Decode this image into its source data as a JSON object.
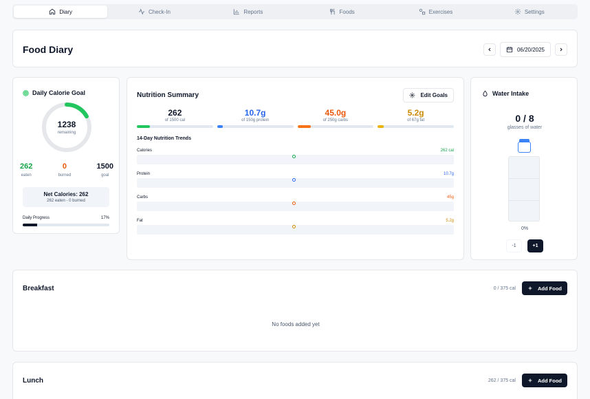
{
  "tabs": [
    {
      "label": "Diary",
      "icon": "home-icon",
      "active": true
    },
    {
      "label": "Check-In",
      "icon": "activity-icon"
    },
    {
      "label": "Reports",
      "icon": "bar-chart-icon"
    },
    {
      "label": "Foods",
      "icon": "utensils-icon"
    },
    {
      "label": "Exercises",
      "icon": "shapes-icon"
    },
    {
      "label": "Settings",
      "icon": "gear-icon"
    }
  ],
  "header": {
    "title": "Food Diary",
    "date": "06/20/2025"
  },
  "calorie_goal": {
    "title": "Daily Calorie Goal",
    "remaining": "1238",
    "remaining_label": "remaining",
    "ring_progress": 0.17,
    "eaten": "262",
    "eaten_label": "eaten",
    "burned": "0",
    "burned_label": "burned",
    "goal": "1500",
    "goal_label": "goal",
    "net_title": "Net Calories: 262",
    "net_sub": "262 eaten - 0 burned",
    "progress_label": "Daily Progress",
    "progress_pct": "17%",
    "progress": 0.17
  },
  "nutrition": {
    "title": "Nutrition Summary",
    "edit_label": "Edit Goals",
    "macros": [
      {
        "value": "262",
        "sub": "of 1500 cal",
        "color": "#0f172a",
        "bar": "#22c55e",
        "progress": 0.17
      },
      {
        "value": "10.7g",
        "sub": "of 150g protein",
        "color": "#2563eb",
        "bar": "#3b82f6",
        "progress": 0.07
      },
      {
        "value": "45.0g",
        "sub": "of 250g carbs",
        "color": "#ea580c",
        "bar": "#f97316",
        "progress": 0.18
      },
      {
        "value": "5.2g",
        "sub": "of 67g fat",
        "color": "#ca8a04",
        "bar": "#eab308",
        "progress": 0.08
      }
    ],
    "trends_title": "14-Day Nutrition Trends",
    "trends": [
      {
        "label": "Calories",
        "value": "262 cal",
        "color": "#16a34a"
      },
      {
        "label": "Protein",
        "value": "10.7g",
        "color": "#2563eb"
      },
      {
        "label": "Carbs",
        "value": "45g",
        "color": "#ea580c"
      },
      {
        "label": "Fat",
        "value": "5.2g",
        "color": "#ca8a04"
      }
    ]
  },
  "water": {
    "title": "Water Intake",
    "count": "0 / 8",
    "sub": "glasses of water",
    "pct": "0%",
    "minus": "-1",
    "plus": "+1"
  },
  "meals": {
    "breakfast": {
      "title": "Breakfast",
      "cal": "0 / 375 cal",
      "add": "Add Food",
      "empty": "No foods added yet"
    },
    "lunch": {
      "title": "Lunch",
      "cal": "262 / 375 cal",
      "add": "Add Food"
    }
  }
}
